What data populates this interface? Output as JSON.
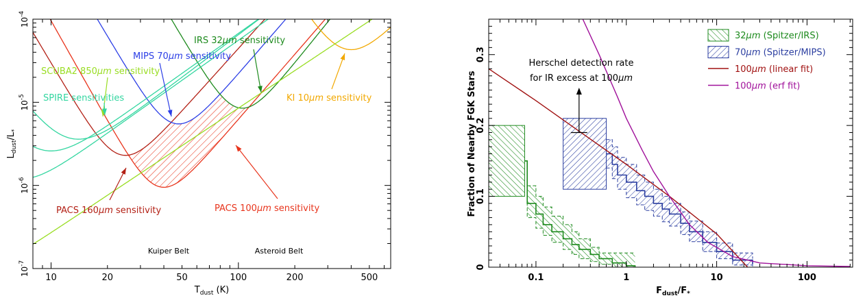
{
  "chart_data": [
    {
      "type": "line",
      "xscale": "log",
      "yscale": "log",
      "xlim": [
        8,
        650
      ],
      "ylim": [
        1e-07,
        0.0001
      ],
      "grid": false,
      "ylabel": "L_dust/L_*",
      "xlabel": "T_dust (K)",
      "xticks": [
        {
          "v": 10,
          "label": "10"
        },
        {
          "v": 20,
          "label": "20"
        },
        {
          "v": 50,
          "label": "50"
        },
        {
          "v": 100,
          "label": "100"
        },
        {
          "v": 200,
          "label": "200"
        },
        {
          "v": 500,
          "label": "500"
        }
      ],
      "yticks": [
        {
          "v": 1e-07,
          "mantissa": "10",
          "exp": "-7"
        },
        {
          "v": 1e-06,
          "mantissa": "10",
          "exp": "-6"
        },
        {
          "v": 1e-05,
          "mantissa": "10",
          "exp": "-5"
        },
        {
          "v": 0.0001,
          "mantissa": "10",
          "exp": "-4"
        }
      ],
      "series": [
        {
          "name": "PACS 100µm sensitivity",
          "color": "#e8341c",
          "label": "PACS 100",
          "um": "µm",
          "label_post": " sensitivity",
          "tmin": 40,
          "lmin": 9.5e-07,
          "p": 2.6,
          "q": 4.0
        },
        {
          "name": "PACS 160µm sensitivity",
          "color": "#b32015",
          "label": "PACS 160",
          "um": "µm",
          "label_post": " sensitivity",
          "tmin": 25,
          "lmin": 2.3e-06,
          "p": 2.5,
          "q": 3.8
        },
        {
          "name": "MIPS 70µm sensitivity",
          "color": "#2b3ee6",
          "label": "MIPS 70",
          "um": "µm",
          "label_post": " sensitivity",
          "tmin": 48,
          "lmin": 5.5e-06,
          "p": 2.6,
          "q": 3.8
        },
        {
          "name": "IRS 32µm sensitivity",
          "color": "#1d8a1d",
          "label": "IRS 32",
          "um": "µm",
          "label_post": " sensitivity",
          "tmin": 105,
          "lmin": 8.5e-06,
          "p": 2.8,
          "q": 3.8
        },
        {
          "name": "KI 10µm sensitivity",
          "color": "#f2a800",
          "label": "KI 10",
          "um": "µm",
          "label_post": " sensitivity",
          "tmin": 400,
          "lmin": 4.3e-05,
          "p": 2.2,
          "q": 3.5
        },
        {
          "name": "SCUBA2 850µm sensitivity",
          "color": "#99dd22",
          "label": "SCUBA2 850",
          "um": "µm",
          "label_post": " sensitivity",
          "tmin": 4,
          "lmin": 1e-07,
          "p": 1.5,
          "q": 3.2
        },
        {
          "name": "SPIRE sensitivities",
          "color": "#33d6a0",
          "label": "SPIRE sensitivities",
          "um": "",
          "label_post": "",
          "tmin": 7,
          "lmin": 1.2e-06,
          "p": 1.6,
          "q": 3.1
        },
        {
          "name": "SPIRE 2",
          "color": "#33d6a0",
          "tmin": 10,
          "lmin": 2.6e-06,
          "p": 1.6,
          "q": 3.0
        },
        {
          "name": "SPIRE 3",
          "color": "#33d6a0",
          "tmin": 14,
          "lmin": 3.6e-06,
          "p": 1.7,
          "q": 3.0
        }
      ],
      "annotations": [
        "Kuiper Belt",
        "Asteroid Belt"
      ]
    },
    {
      "type": "line",
      "xscale": "log",
      "xlim": [
        0.03,
        320
      ],
      "ylim": [
        0,
        0.35
      ],
      "grid": false,
      "ylabel": "Fraction of Nearby FGK Stars",
      "xlabel": "F_dust/F_*",
      "xticks": [
        {
          "v": 0.1,
          "label": "0.1"
        },
        {
          "v": 1,
          "label": "1"
        },
        {
          "v": 10,
          "label": "10"
        },
        {
          "v": 100,
          "label": "100"
        }
      ],
      "yticks": [
        {
          "v": 0,
          "label": "0"
        },
        {
          "v": 0.1,
          "label": "0.1"
        },
        {
          "v": 0.2,
          "label": "0.2"
        },
        {
          "v": 0.3,
          "label": "0.3"
        }
      ],
      "legend_position": "top-right",
      "legend": [
        {
          "um": "32",
          "unit": "µm",
          "post": " (Spitzer/IRS)",
          "color": "#1d8a1d",
          "kind": "hatch"
        },
        {
          "um": "70",
          "unit": "µm",
          "post": " (Spitzer/MIPS)",
          "color": "#2b3ea0",
          "kind": "hatch"
        },
        {
          "um": "100",
          "unit": "µm",
          "post": " (linear fit)",
          "color": "#a01010",
          "kind": "line"
        },
        {
          "um": "100",
          "unit": "µm",
          "post": " (erf fit)",
          "color": "#a0109a",
          "kind": "line"
        }
      ],
      "series": [
        {
          "name": "32µm (Spitzer/IRS)",
          "color": "#1d8a1d",
          "x": [
            0.075,
            0.08,
            0.1,
            0.12,
            0.15,
            0.2,
            0.25,
            0.3,
            0.4,
            0.5,
            0.7,
            1.0,
            1.25
          ],
          "y": [
            0.15,
            0.09,
            0.075,
            0.06,
            0.05,
            0.04,
            0.032,
            0.025,
            0.018,
            0.012,
            0.006,
            0.002,
            0.0
          ],
          "upper": [
            0.15,
            0.115,
            0.1,
            0.085,
            0.072,
            0.06,
            0.05,
            0.04,
            0.028,
            0.02,
            0.02,
            0.02,
            0.02
          ],
          "lower": [
            0.15,
            0.07,
            0.055,
            0.045,
            0.035,
            0.025,
            0.018,
            0.012,
            0.008,
            0.004,
            0.0,
            0.0,
            0.0
          ],
          "box": {
            "x0": 0.03,
            "x1": 0.075,
            "y0": 0.1,
            "y1": 0.2
          }
        },
        {
          "name": "70µm (Spitzer/MIPS)",
          "color": "#2b3ea0",
          "x": [
            0.6,
            0.7,
            0.8,
            1.0,
            1.3,
            1.6,
            2.0,
            2.5,
            3.0,
            4.0,
            5.0,
            7.0,
            10.0,
            15.0,
            25.0
          ],
          "y": [
            0.16,
            0.145,
            0.13,
            0.12,
            0.108,
            0.1,
            0.09,
            0.082,
            0.075,
            0.062,
            0.05,
            0.035,
            0.022,
            0.01,
            0.004
          ],
          "upper": [
            0.18,
            0.17,
            0.155,
            0.145,
            0.13,
            0.12,
            0.11,
            0.1,
            0.09,
            0.078,
            0.065,
            0.05,
            0.034,
            0.02,
            0.012
          ],
          "lower": [
            0.14,
            0.125,
            0.11,
            0.098,
            0.088,
            0.08,
            0.072,
            0.064,
            0.058,
            0.046,
            0.036,
            0.022,
            0.012,
            0.003,
            0.0
          ],
          "box": {
            "x0": 0.2,
            "x1": 0.6,
            "y0": 0.11,
            "y1": 0.21
          }
        },
        {
          "name": "100µm (linear fit)",
          "color": "#a01010",
          "x": [
            0.03,
            0.1,
            0.3,
            1.0,
            3.0,
            10.0,
            22.0
          ],
          "y": [
            0.28,
            0.235,
            0.192,
            0.145,
            0.1,
            0.047,
            0.0
          ]
        },
        {
          "name": "100µm (erf fit)",
          "color": "#a0109a",
          "x": [
            0.33,
            0.5,
            0.8,
            1.0,
            1.5,
            2.0,
            3.0,
            5.0,
            8.0,
            15.0,
            30.0,
            100.0,
            300.0
          ],
          "y": [
            0.35,
            0.3,
            0.24,
            0.21,
            0.165,
            0.135,
            0.1,
            0.06,
            0.035,
            0.015,
            0.006,
            0.002,
            0.001
          ]
        }
      ],
      "annotation": {
        "line1": "Herschel detection rate",
        "line2_pre": "for IR excess at 100",
        "line2_unit": "µm",
        "x": 0.3,
        "y": 0.19
      }
    }
  ]
}
